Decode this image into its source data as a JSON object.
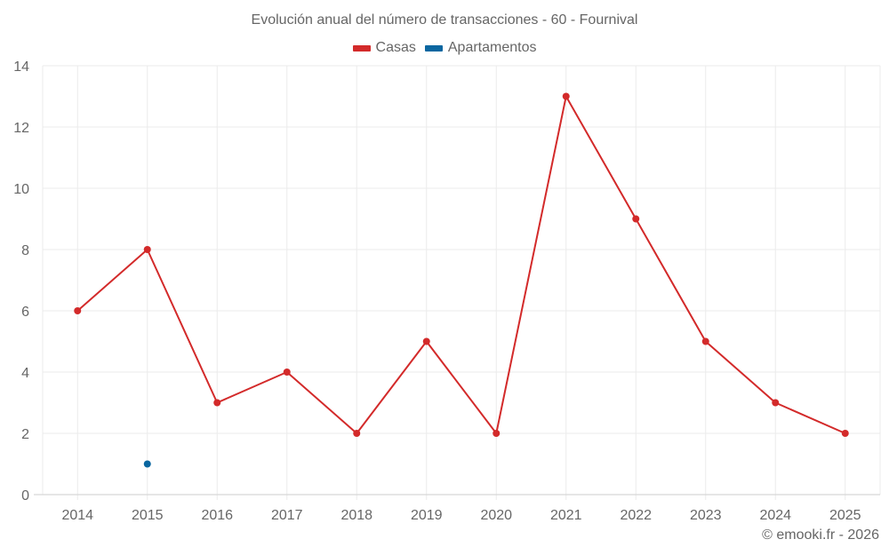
{
  "chart": {
    "title": "Evolución anual del número de transacciones - 60 - Fournival",
    "credit": "© emooki.fr - 2026",
    "legend": [
      {
        "label": "Casas",
        "color": "#d32a2a"
      },
      {
        "label": "Apartamentos",
        "color": "#0a66a0"
      }
    ]
  },
  "chart_data": {
    "type": "line",
    "title": "Evolución anual del número de transacciones - 60 - Fournival",
    "xlabel": "",
    "ylabel": "",
    "categories": [
      "2014",
      "2015",
      "2016",
      "2017",
      "2018",
      "2019",
      "2020",
      "2021",
      "2022",
      "2023",
      "2024",
      "2025"
    ],
    "series": [
      {
        "name": "Casas",
        "color": "#d32a2a",
        "values": [
          6,
          8,
          3,
          4,
          2,
          5,
          2,
          13,
          9,
          5,
          3,
          2
        ]
      },
      {
        "name": "Apartamentos",
        "color": "#0a66a0",
        "values": [
          null,
          1,
          null,
          null,
          null,
          null,
          null,
          null,
          null,
          null,
          null,
          null
        ]
      }
    ],
    "ylim": [
      0,
      14
    ],
    "yticks": [
      0,
      2,
      4,
      6,
      8,
      10,
      12,
      14
    ],
    "grid": true,
    "legend_position": "top"
  }
}
